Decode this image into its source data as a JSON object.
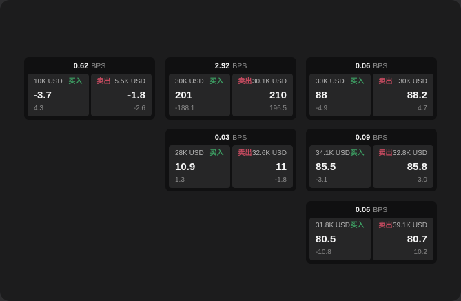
{
  "labels": {
    "buy": "买入",
    "sell": "卖出",
    "bps_unit": "BPS"
  },
  "colors": {
    "buy": "#3da164",
    "sell": "#c44a5f",
    "page_bg": "#1c1c1d",
    "card_bg": "#101011",
    "tile_bg": "#262627"
  },
  "cards": [
    {
      "bps": "0.62",
      "col": 1,
      "row": 1,
      "buy": {
        "amount": "10K USD",
        "price": "-3.7",
        "delta": "4.3"
      },
      "sell": {
        "amount": "5.5K USD",
        "price": "-1.8",
        "delta": "-2.6"
      }
    },
    {
      "bps": "2.92",
      "col": 2,
      "row": 1,
      "buy": {
        "amount": "30K USD",
        "price": "201",
        "delta": "-188.1"
      },
      "sell": {
        "amount": "30.1K USD",
        "price": "210",
        "delta": "196.5"
      }
    },
    {
      "bps": "0.06",
      "col": 3,
      "row": 1,
      "buy": {
        "amount": "30K USD",
        "price": "88",
        "delta": "-4.9"
      },
      "sell": {
        "amount": "30K USD",
        "price": "88.2",
        "delta": "4.7"
      }
    },
    {
      "bps": "0.03",
      "col": 2,
      "row": 2,
      "buy": {
        "amount": "28K USD",
        "price": "10.9",
        "delta": "1.3"
      },
      "sell": {
        "amount": "32.6K USD",
        "price": "11",
        "delta": "-1.8"
      }
    },
    {
      "bps": "0.09",
      "col": 3,
      "row": 2,
      "buy": {
        "amount": "34.1K USD",
        "price": "85.5",
        "delta": "-3.1"
      },
      "sell": {
        "amount": "32.8K USD",
        "price": "85.8",
        "delta": "3.0"
      }
    },
    {
      "bps": "0.06",
      "col": 3,
      "row": 3,
      "buy": {
        "amount": "31.8K USD",
        "price": "80.5",
        "delta": "-10.8"
      },
      "sell": {
        "amount": "39.1K USD",
        "price": "80.7",
        "delta": "10.2"
      }
    }
  ]
}
